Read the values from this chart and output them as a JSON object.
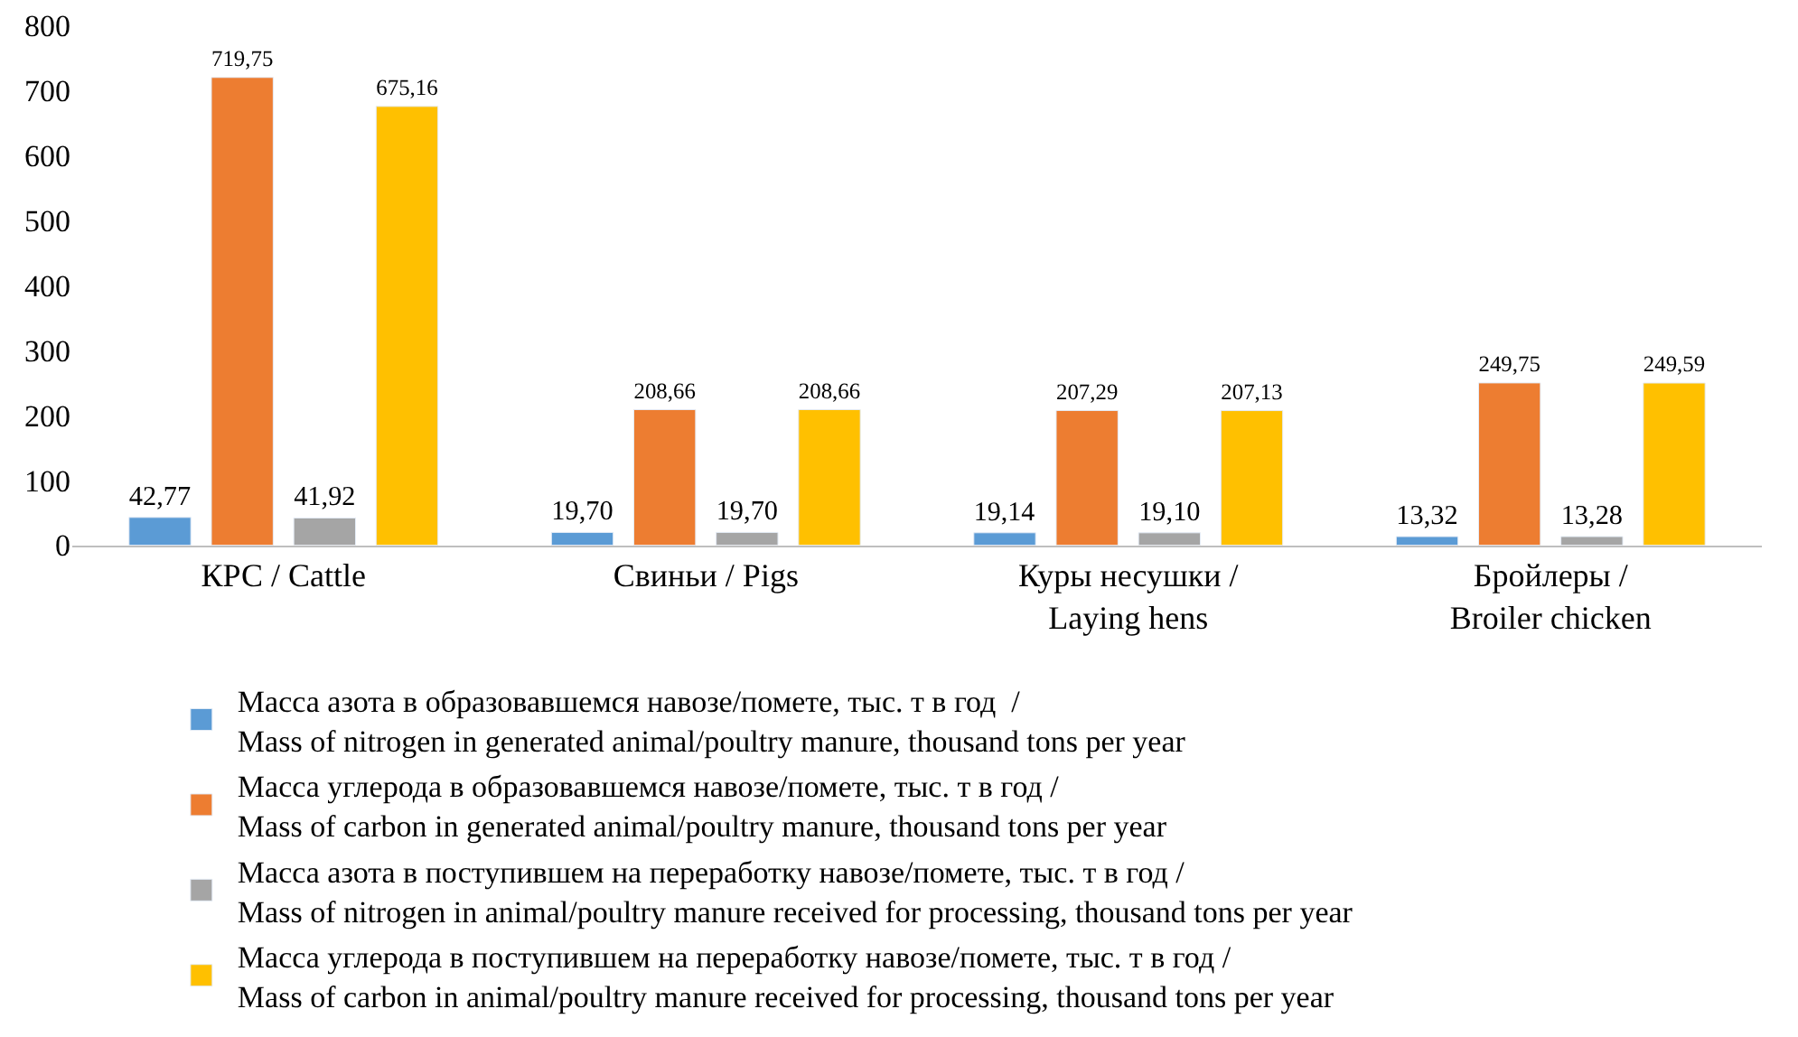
{
  "chart_data": {
    "type": "bar",
    "categories": [
      "КРС / Cattle",
      "Свиньи / Pigs",
      "Куры несушки /\nLaying hens",
      "Бройлеры /\nBroiler chicken"
    ],
    "series": [
      {
        "name": "Масса азота в образовавшемся навозе/помете, тыс. т в год  /\nMass of nitrogen in generated animal/poultry manure, thousand tons per year",
        "color": "#5b9bd5",
        "values": [
          42.77,
          19.7,
          19.14,
          13.32
        ],
        "value_labels": [
          "42,77",
          "19,70",
          "19,14",
          "13,32"
        ]
      },
      {
        "name": "Масса углерода в образовавшемся навозе/помете, тыс. т в год /\nMass of carbon in generated animal/poultry manure, thousand tons per year",
        "color": "#ed7d31",
        "values": [
          719.75,
          208.66,
          207.29,
          249.75
        ],
        "value_labels": [
          "719,75",
          "208,66",
          "207,29",
          "249,75"
        ]
      },
      {
        "name": "Масса азота в поступившем на переработку навозе/помете, тыс. т в год /\nMass of nitrogen in animal/poultry manure received for processing, thousand tons per year",
        "color": "#a5a5a5",
        "values": [
          41.92,
          19.7,
          19.1,
          13.28
        ],
        "value_labels": [
          "41,92",
          "19,70",
          "19,10",
          "13,28"
        ]
      },
      {
        "name": "Масса углерода в поступившем на переработку навозе/помете, тыс. т в год /\nMass of carbon in animal/poultry manure received for processing, thousand tons per year",
        "color": "#ffc000",
        "values": [
          675.16,
          208.66,
          207.13,
          249.59
        ],
        "value_labels": [
          "675,16",
          "208,66",
          "207,13",
          "249,59"
        ]
      }
    ],
    "ylim": [
      0,
      800
    ],
    "yticks": [
      0,
      100,
      200,
      300,
      400,
      500,
      600,
      700,
      800
    ],
    "grid": false,
    "legend": "bottom"
  }
}
